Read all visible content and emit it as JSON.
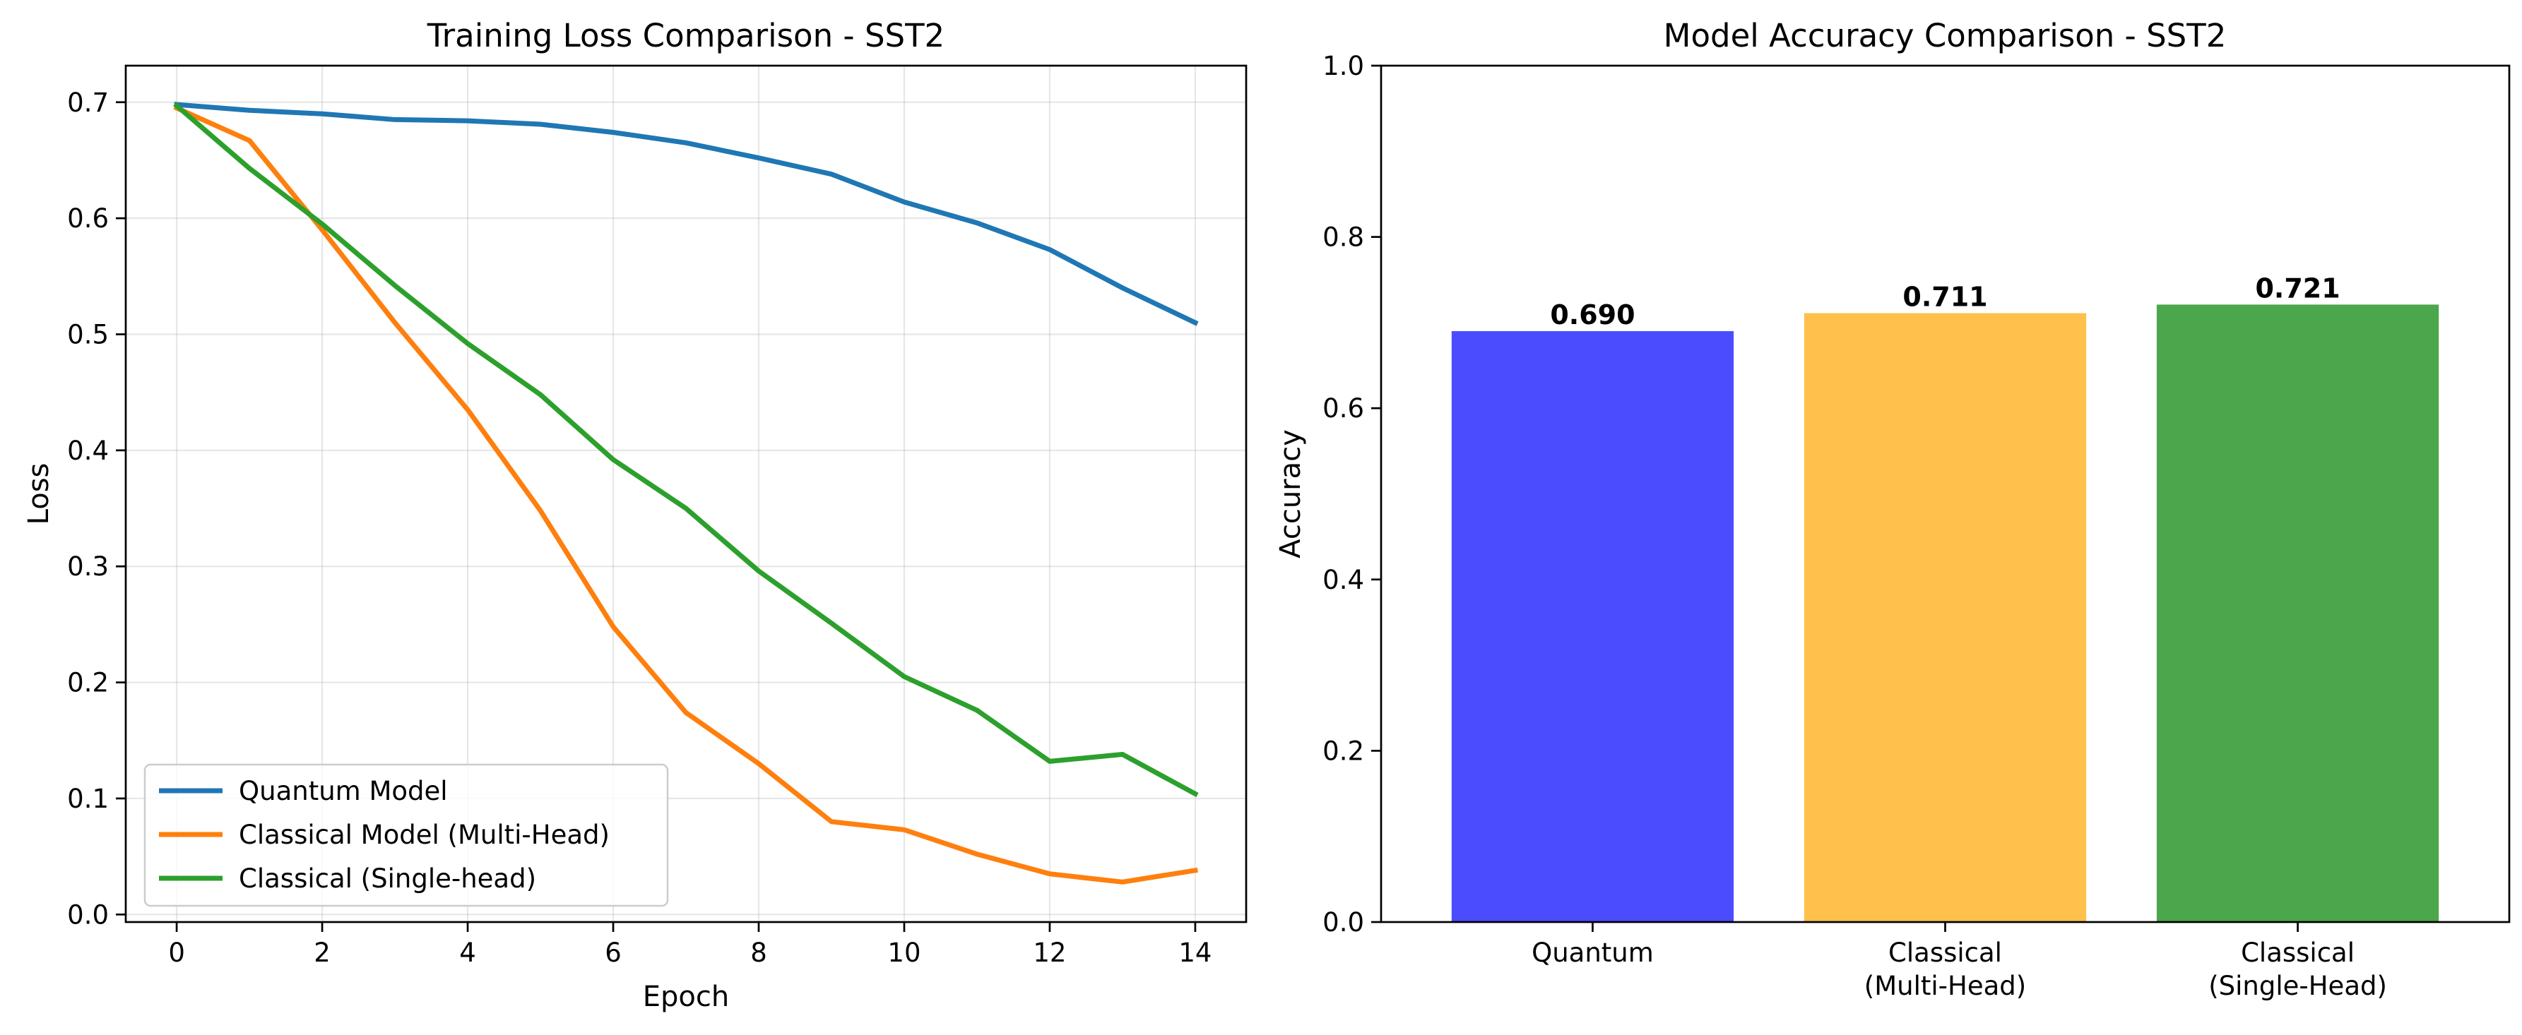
{
  "colors": {
    "quantum_line": "#1f77b4",
    "multihead_line": "#ff7f0e",
    "singlehead_line": "#2ca02c",
    "quantum_bar": "#0000ff",
    "multihead_bar": "#ffa500",
    "singlehead_bar": "#008000"
  },
  "chart_data": [
    {
      "type": "line",
      "title": "Training Loss Comparison - SST2",
      "xlabel": "Epoch",
      "ylabel": "Loss",
      "xlim": [
        -0.7,
        14.7
      ],
      "ylim": [
        -0.0065,
        0.7315
      ],
      "xticks": [
        0,
        2,
        4,
        6,
        8,
        10,
        12,
        14
      ],
      "xtick_labels": [
        "0",
        "2",
        "4",
        "6",
        "8",
        "10",
        "12",
        "14"
      ],
      "yticks": [
        0.0,
        0.1,
        0.2,
        0.3,
        0.4,
        0.5,
        0.6,
        0.7
      ],
      "ytick_labels": [
        "0.0",
        "0.1",
        "0.2",
        "0.3",
        "0.4",
        "0.5",
        "0.6",
        "0.7"
      ],
      "grid": true,
      "legend_position": "lower-left",
      "x": [
        0,
        1,
        2,
        3,
        4,
        5,
        6,
        7,
        8,
        9,
        10,
        11,
        12,
        13,
        14
      ],
      "series": [
        {
          "name": "Quantum Model",
          "color_key": "quantum_line",
          "values": [
            0.698,
            0.693,
            0.69,
            0.685,
            0.684,
            0.681,
            0.674,
            0.665,
            0.652,
            0.638,
            0.614,
            0.596,
            0.573,
            0.54,
            0.51
          ]
        },
        {
          "name": "Classical Model (Multi-Head)",
          "color_key": "multihead_line",
          "values": [
            0.695,
            0.667,
            0.59,
            0.51,
            0.435,
            0.348,
            0.248,
            0.174,
            0.13,
            0.08,
            0.073,
            0.052,
            0.035,
            0.028,
            0.038
          ]
        },
        {
          "name": "Classical (Single-head)",
          "color_key": "singlehead_line",
          "values": [
            0.697,
            0.643,
            0.595,
            0.542,
            0.492,
            0.448,
            0.392,
            0.35,
            0.296,
            0.251,
            0.205,
            0.176,
            0.132,
            0.138,
            0.104
          ]
        }
      ]
    },
    {
      "type": "bar",
      "title": "Model Accuracy Comparison - SST2",
      "xlabel": "",
      "ylabel": "Accuracy",
      "ylim": [
        0.0,
        1.0
      ],
      "yticks": [
        0.0,
        0.2,
        0.4,
        0.6,
        0.8,
        1.0
      ],
      "ytick_labels": [
        "0.0",
        "0.2",
        "0.4",
        "0.6",
        "0.8",
        "1.0"
      ],
      "grid": false,
      "bar_alpha": 0.7,
      "categories": [
        [
          "Quantum"
        ],
        [
          "Classical",
          "(Multi-Head)"
        ],
        [
          "Classical",
          "(Single-Head)"
        ]
      ],
      "values": [
        0.69,
        0.711,
        0.721
      ],
      "value_labels": [
        "0.690",
        "0.711",
        "0.721"
      ],
      "color_keys": [
        "quantum_bar",
        "multihead_bar",
        "singlehead_bar"
      ]
    }
  ]
}
